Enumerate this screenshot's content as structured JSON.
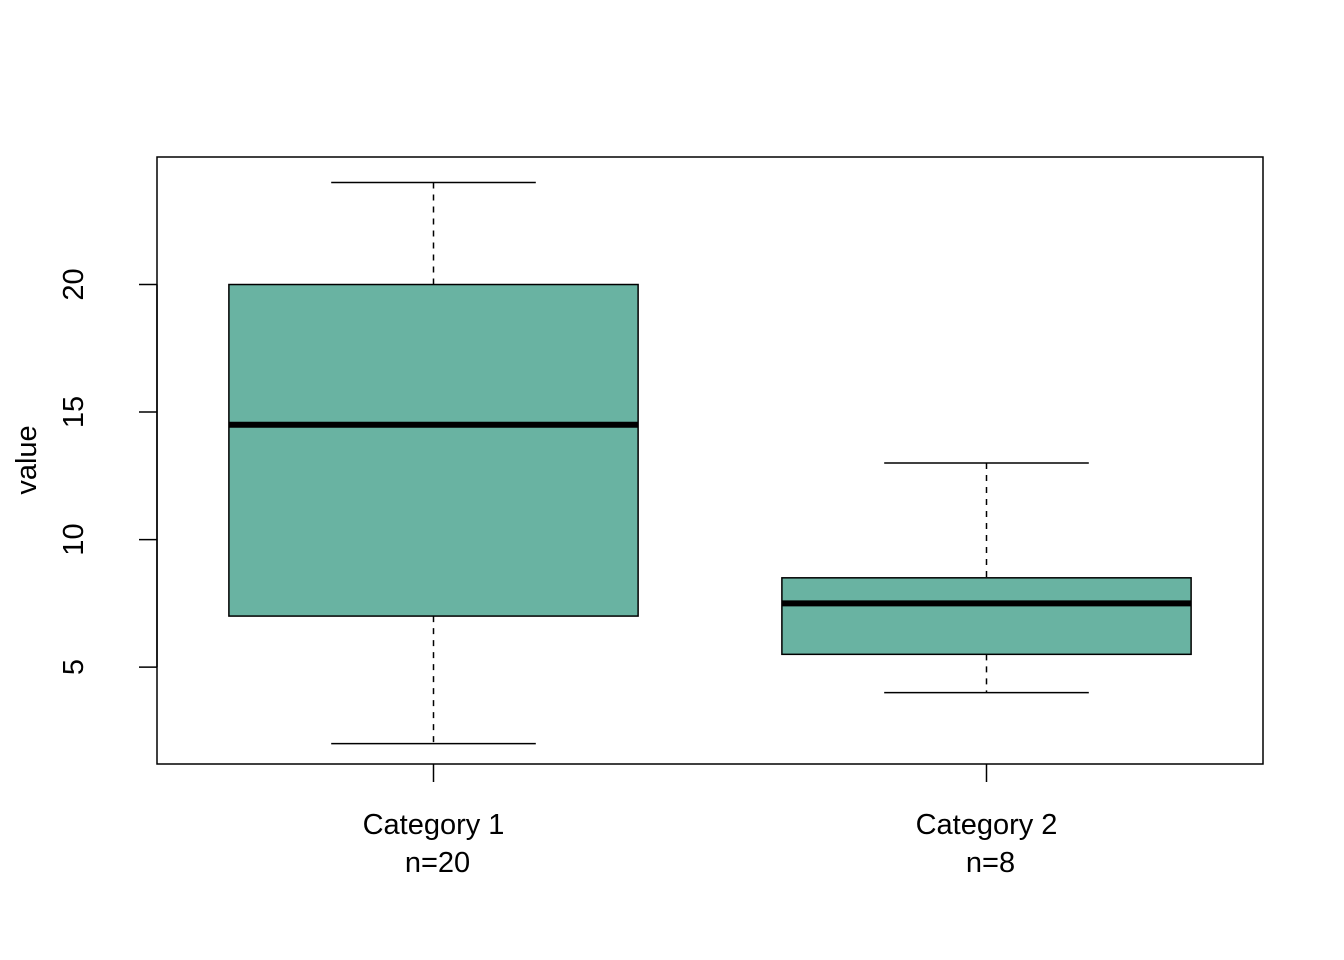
{
  "chart_data": {
    "type": "boxplot",
    "ylabel": "value",
    "ylim": [
      1.2,
      25.0
    ],
    "yticks": [
      "5",
      "10",
      "15",
      "20"
    ],
    "categories": [
      "Category 1",
      "Category 2"
    ],
    "n_labels": [
      "n=20",
      "n=8"
    ],
    "box_color": "#69b3a2",
    "grid": false,
    "boxes": [
      {
        "category": "Category 1",
        "min": 2.0,
        "q1": 7.0,
        "median": 14.5,
        "q3": 20.0,
        "max": 24.0
      },
      {
        "category": "Category 2",
        "min": 4.0,
        "q1": 5.5,
        "median": 7.5,
        "q3": 8.5,
        "max": 13.0
      }
    ]
  }
}
